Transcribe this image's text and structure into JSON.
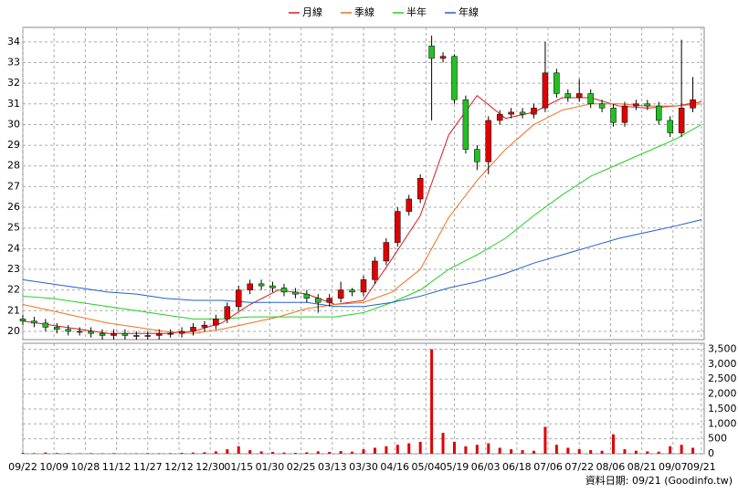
{
  "chart_data": {
    "type": "candlestick",
    "xlim": [
      0,
      240
    ],
    "xticks": [
      {
        "value": 0,
        "label": "09/22"
      },
      {
        "value": 11,
        "label": "10/09"
      },
      {
        "value": 22,
        "label": "10/28"
      },
      {
        "value": 33,
        "label": "11/12"
      },
      {
        "value": 44,
        "label": "11/27"
      },
      {
        "value": 55,
        "label": "12/12"
      },
      {
        "value": 66,
        "label": "12/30"
      },
      {
        "value": 76,
        "label": "01/15"
      },
      {
        "value": 87,
        "label": "01/30"
      },
      {
        "value": 98,
        "label": "02/25"
      },
      {
        "value": 109,
        "label": "03/13"
      },
      {
        "value": 120,
        "label": "03/30"
      },
      {
        "value": 131,
        "label": "04/16"
      },
      {
        "value": 142,
        "label": "05/04"
      },
      {
        "value": 152,
        "label": "05/19"
      },
      {
        "value": 163,
        "label": "06/03"
      },
      {
        "value": 174,
        "label": "06/18"
      },
      {
        "value": 185,
        "label": "07/06"
      },
      {
        "value": 196,
        "label": "07/22"
      },
      {
        "value": 207,
        "label": "08/06"
      },
      {
        "value": 218,
        "label": "08/21"
      },
      {
        "value": 229,
        "label": "09/07"
      },
      {
        "value": 239,
        "label": "09/21"
      }
    ],
    "ylim": [
      19.6,
      34.7
    ],
    "yticks": [
      20,
      21,
      22,
      23,
      24,
      25,
      26,
      27,
      28,
      29,
      30,
      31,
      32,
      33,
      34
    ],
    "grid": true,
    "up_color": "#e00000",
    "down_color": "#22c022",
    "candles": {
      "x": [
        0,
        4,
        8,
        12,
        16,
        20,
        24,
        28,
        32,
        36,
        40,
        44,
        48,
        52,
        56,
        60,
        64,
        68,
        72,
        76,
        80,
        84,
        88,
        92,
        96,
        100,
        104,
        108,
        112,
        116,
        120,
        124,
        128,
        132,
        136,
        140,
        144,
        148,
        152,
        156,
        160,
        164,
        168,
        172,
        176,
        180,
        184,
        188,
        192,
        196,
        200,
        204,
        208,
        212,
        216,
        220,
        224,
        228,
        232,
        236
      ],
      "open": [
        20.6,
        20.5,
        20.4,
        20.2,
        20.1,
        20.0,
        20.0,
        19.9,
        19.8,
        19.9,
        19.8,
        19.8,
        19.8,
        19.9,
        19.9,
        20.0,
        20.2,
        20.3,
        20.6,
        21.2,
        22.0,
        22.3,
        22.2,
        22.1,
        21.9,
        21.8,
        21.6,
        21.4,
        21.6,
        22.0,
        21.9,
        22.5,
        23.4,
        24.3,
        25.8,
        26.4,
        33.8,
        33.2,
        33.3,
        31.2,
        28.8,
        28.2,
        30.2,
        30.5,
        30.6,
        30.5,
        30.8,
        32.5,
        31.5,
        31.3,
        31.5,
        31.0,
        30.8,
        30.1,
        30.9,
        31.0,
        30.9,
        30.2,
        29.6,
        30.8
      ],
      "high": [
        20.8,
        20.7,
        20.6,
        20.4,
        20.3,
        20.2,
        20.2,
        20.1,
        20.1,
        20.1,
        20.0,
        20.0,
        20.1,
        20.1,
        20.2,
        20.4,
        20.5,
        20.8,
        21.4,
        22.2,
        22.5,
        22.5,
        22.4,
        22.3,
        22.1,
        22.0,
        21.8,
        21.8,
        22.4,
        22.1,
        22.7,
        23.6,
        24.5,
        26.0,
        26.6,
        27.6,
        34.3,
        33.5,
        33.4,
        31.4,
        29.0,
        30.4,
        30.7,
        30.8,
        30.8,
        31.0,
        34.0,
        32.7,
        31.7,
        32.2,
        31.7,
        31.2,
        31.0,
        31.1,
        31.2,
        31.2,
        31.1,
        30.4,
        34.1,
        32.3
      ],
      "low": [
        20.3,
        20.2,
        20.0,
        19.9,
        19.8,
        19.8,
        19.7,
        19.6,
        19.6,
        19.6,
        19.6,
        19.6,
        19.6,
        19.7,
        19.7,
        19.8,
        20.0,
        20.1,
        20.4,
        21.0,
        21.8,
        22.0,
        21.9,
        21.7,
        21.6,
        21.4,
        20.9,
        21.2,
        21.4,
        21.7,
        21.7,
        22.3,
        23.2,
        24.1,
        25.6,
        26.2,
        30.2,
        33.0,
        31.0,
        28.6,
        27.8,
        27.6,
        30.0,
        30.3,
        30.3,
        30.3,
        30.6,
        31.3,
        31.1,
        31.1,
        30.8,
        30.6,
        29.9,
        29.9,
        30.7,
        30.7,
        30.0,
        29.4,
        29.4,
        30.6
      ],
      "close": [
        20.5,
        20.4,
        20.2,
        20.1,
        20.0,
        20.0,
        19.9,
        19.8,
        19.9,
        19.8,
        19.8,
        19.8,
        19.9,
        19.9,
        20.0,
        20.2,
        20.3,
        20.6,
        21.2,
        22.0,
        22.3,
        22.2,
        22.1,
        21.9,
        21.8,
        21.6,
        21.4,
        21.6,
        22.0,
        21.9,
        22.5,
        23.4,
        24.3,
        25.8,
        26.4,
        27.4,
        33.2,
        33.3,
        31.2,
        28.8,
        28.2,
        30.2,
        30.5,
        30.6,
        30.5,
        30.8,
        32.5,
        31.5,
        31.3,
        31.5,
        31.0,
        30.8,
        30.1,
        30.9,
        31.0,
        30.9,
        30.2,
        29.6,
        30.8,
        31.2
      ]
    },
    "ma_x": [
      0,
      10,
      20,
      30,
      40,
      50,
      60,
      70,
      80,
      90,
      100,
      110,
      120,
      130,
      140,
      150,
      160,
      170,
      180,
      190,
      200,
      210,
      220,
      230,
      239
    ],
    "series": [
      {
        "name": "月線",
        "color": "#d02020",
        "values": [
          20.5,
          20.3,
          20.1,
          19.9,
          19.9,
          19.9,
          20.0,
          20.4,
          21.3,
          22.0,
          21.8,
          21.3,
          21.5,
          23.5,
          25.6,
          29.5,
          31.4,
          30.3,
          30.6,
          31.3,
          31.3,
          30.9,
          30.8,
          30.9,
          31.1
        ]
      },
      {
        "name": "季線",
        "color": "#f07020",
        "values": [
          21.3,
          21.0,
          20.7,
          20.4,
          20.2,
          20.0,
          19.9,
          20.1,
          20.4,
          20.7,
          21.1,
          21.3,
          21.4,
          21.9,
          23.0,
          25.5,
          27.3,
          28.8,
          30.0,
          30.7,
          31.0,
          31.0,
          30.9,
          30.9,
          31.0
        ]
      },
      {
        "name": "半年",
        "color": "#20d020",
        "values": [
          21.7,
          21.6,
          21.4,
          21.2,
          21.0,
          20.8,
          20.6,
          20.6,
          20.7,
          20.7,
          20.7,
          20.7,
          20.9,
          21.4,
          22.0,
          23.0,
          23.7,
          24.5,
          25.6,
          26.6,
          27.5,
          28.1,
          28.7,
          29.3,
          30.0
        ]
      },
      {
        "name": "年線",
        "color": "#2060d0",
        "values": [
          22.5,
          22.3,
          22.1,
          21.9,
          21.8,
          21.6,
          21.5,
          21.5,
          21.4,
          21.4,
          21.4,
          21.2,
          21.2,
          21.4,
          21.7,
          22.1,
          22.4,
          22.8,
          23.3,
          23.7,
          24.1,
          24.5,
          24.8,
          25.1,
          25.4
        ]
      }
    ],
    "volume": {
      "color": "#e00000",
      "values": [
        30,
        20,
        40,
        25,
        20,
        15,
        20,
        15,
        20,
        10,
        15,
        20,
        15,
        20,
        30,
        40,
        50,
        80,
        150,
        250,
        120,
        80,
        60,
        40,
        30,
        50,
        80,
        60,
        90,
        70,
        150,
        200,
        250,
        300,
        350,
        400,
        3500,
        700,
        400,
        250,
        300,
        350,
        200,
        150,
        120,
        100,
        900,
        300,
        200,
        150,
        120,
        100,
        650,
        150,
        100,
        80,
        70,
        250,
        300,
        200
      ],
      "ylim": [
        0,
        3700
      ],
      "yticks": [
        0,
        500,
        {
          "value": 1000,
          "label": "1,000"
        },
        {
          "value": 1500,
          "label": "1,500"
        },
        {
          "value": 2000,
          "label": "2,000"
        },
        {
          "value": 2500,
          "label": "2,500"
        },
        {
          "value": 3000,
          "label": "3,000"
        },
        {
          "value": 3500,
          "label": "3,500"
        }
      ]
    },
    "source": "資料日期: 09/21 (Goodinfo.tw)"
  }
}
